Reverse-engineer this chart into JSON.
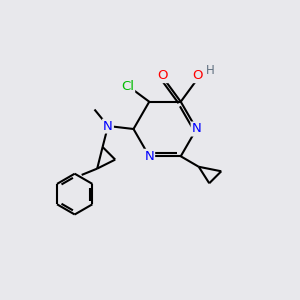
{
  "background_color": "#e8e8ec",
  "bond_color": "#000000",
  "atom_colors": {
    "N": "#0000ff",
    "O": "#ff0000",
    "Cl": "#00bb00",
    "H": "#607080",
    "C": "#000000"
  },
  "lw": 1.5,
  "fontsize": 9.5
}
